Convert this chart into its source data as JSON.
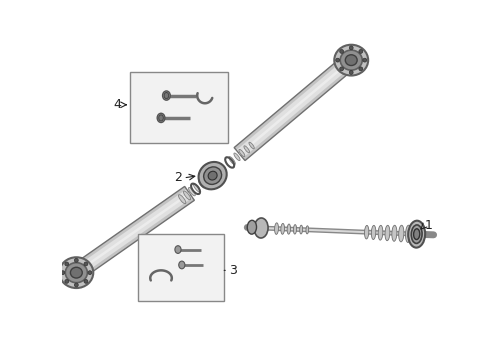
{
  "bg_color": "#ffffff",
  "line_color": "#444444",
  "label_color": "#222222",
  "label_fontsize": 9,
  "shaft_edge": "#707070",
  "shaft_light": "#e0e0e0",
  "shaft_mid": "#c8c8c8",
  "flange_dark": "#606060",
  "flange_mid": "#909090",
  "boot_color": "#b0b0b0",
  "box_fill": "#f2f2f2",
  "box_edge": "#888888"
}
